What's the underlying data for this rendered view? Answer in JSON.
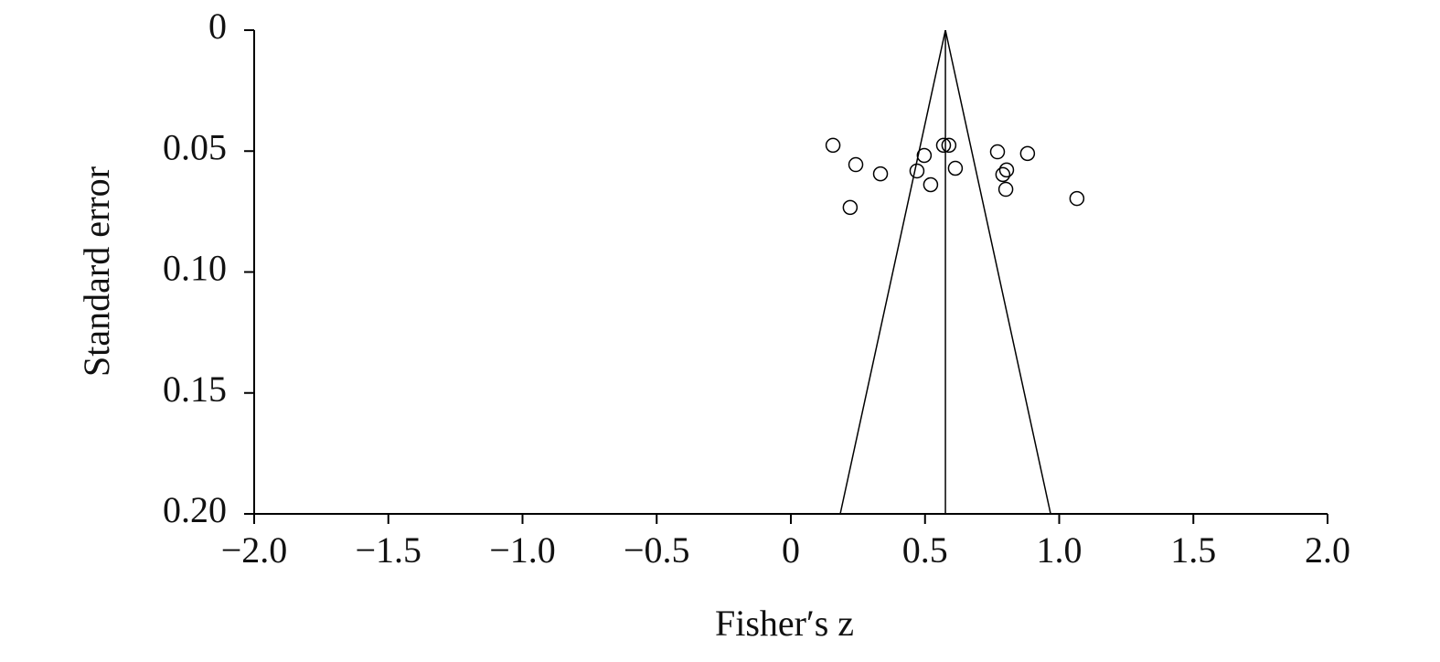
{
  "chart_data": {
    "type": "scatter",
    "x_label": "Fisher′s z",
    "y_label": "Standard error",
    "x": [
      0.157,
      0.242,
      0.334,
      0.221,
      0.47,
      0.497,
      0.521,
      0.569,
      0.589,
      0.613,
      0.77,
      0.882,
      0.804,
      0.79,
      0.801,
      1.066
    ],
    "values": [
      0.0476,
      0.0556,
      0.0594,
      0.0733,
      0.0582,
      0.0518,
      0.0639,
      0.0476,
      0.0476,
      0.0571,
      0.0503,
      0.051,
      0.0578,
      0.0597,
      0.0658,
      0.0696
    ],
    "color": "#000000",
    "funnel": {
      "se": [
        0,
        0.2
      ],
      "center": [
        0.576,
        0.576
      ],
      "left": [
        0.576,
        0.184
      ],
      "right": [
        0.576,
        0.968
      ]
    },
    "xlim": [
      -2,
      2
    ],
    "xticks": [
      {
        "value": -2,
        "label": "−2.0"
      },
      {
        "value": -1.5,
        "label": "−1.5"
      },
      {
        "value": -1,
        "label": "−1.0"
      },
      {
        "value": -0.5,
        "label": "−0.5"
      },
      0,
      0.5,
      {
        "value": 1,
        "label": "1.0"
      },
      1.5,
      {
        "value": 2,
        "label": "2.0"
      }
    ],
    "ylim": [
      0.2,
      0
    ],
    "yticks": [
      0,
      0.05,
      {
        "value": 0.1,
        "label": "0.10"
      },
      0.15,
      {
        "value": 0.2,
        "label": "0.20"
      }
    ],
    "grid": false
  }
}
